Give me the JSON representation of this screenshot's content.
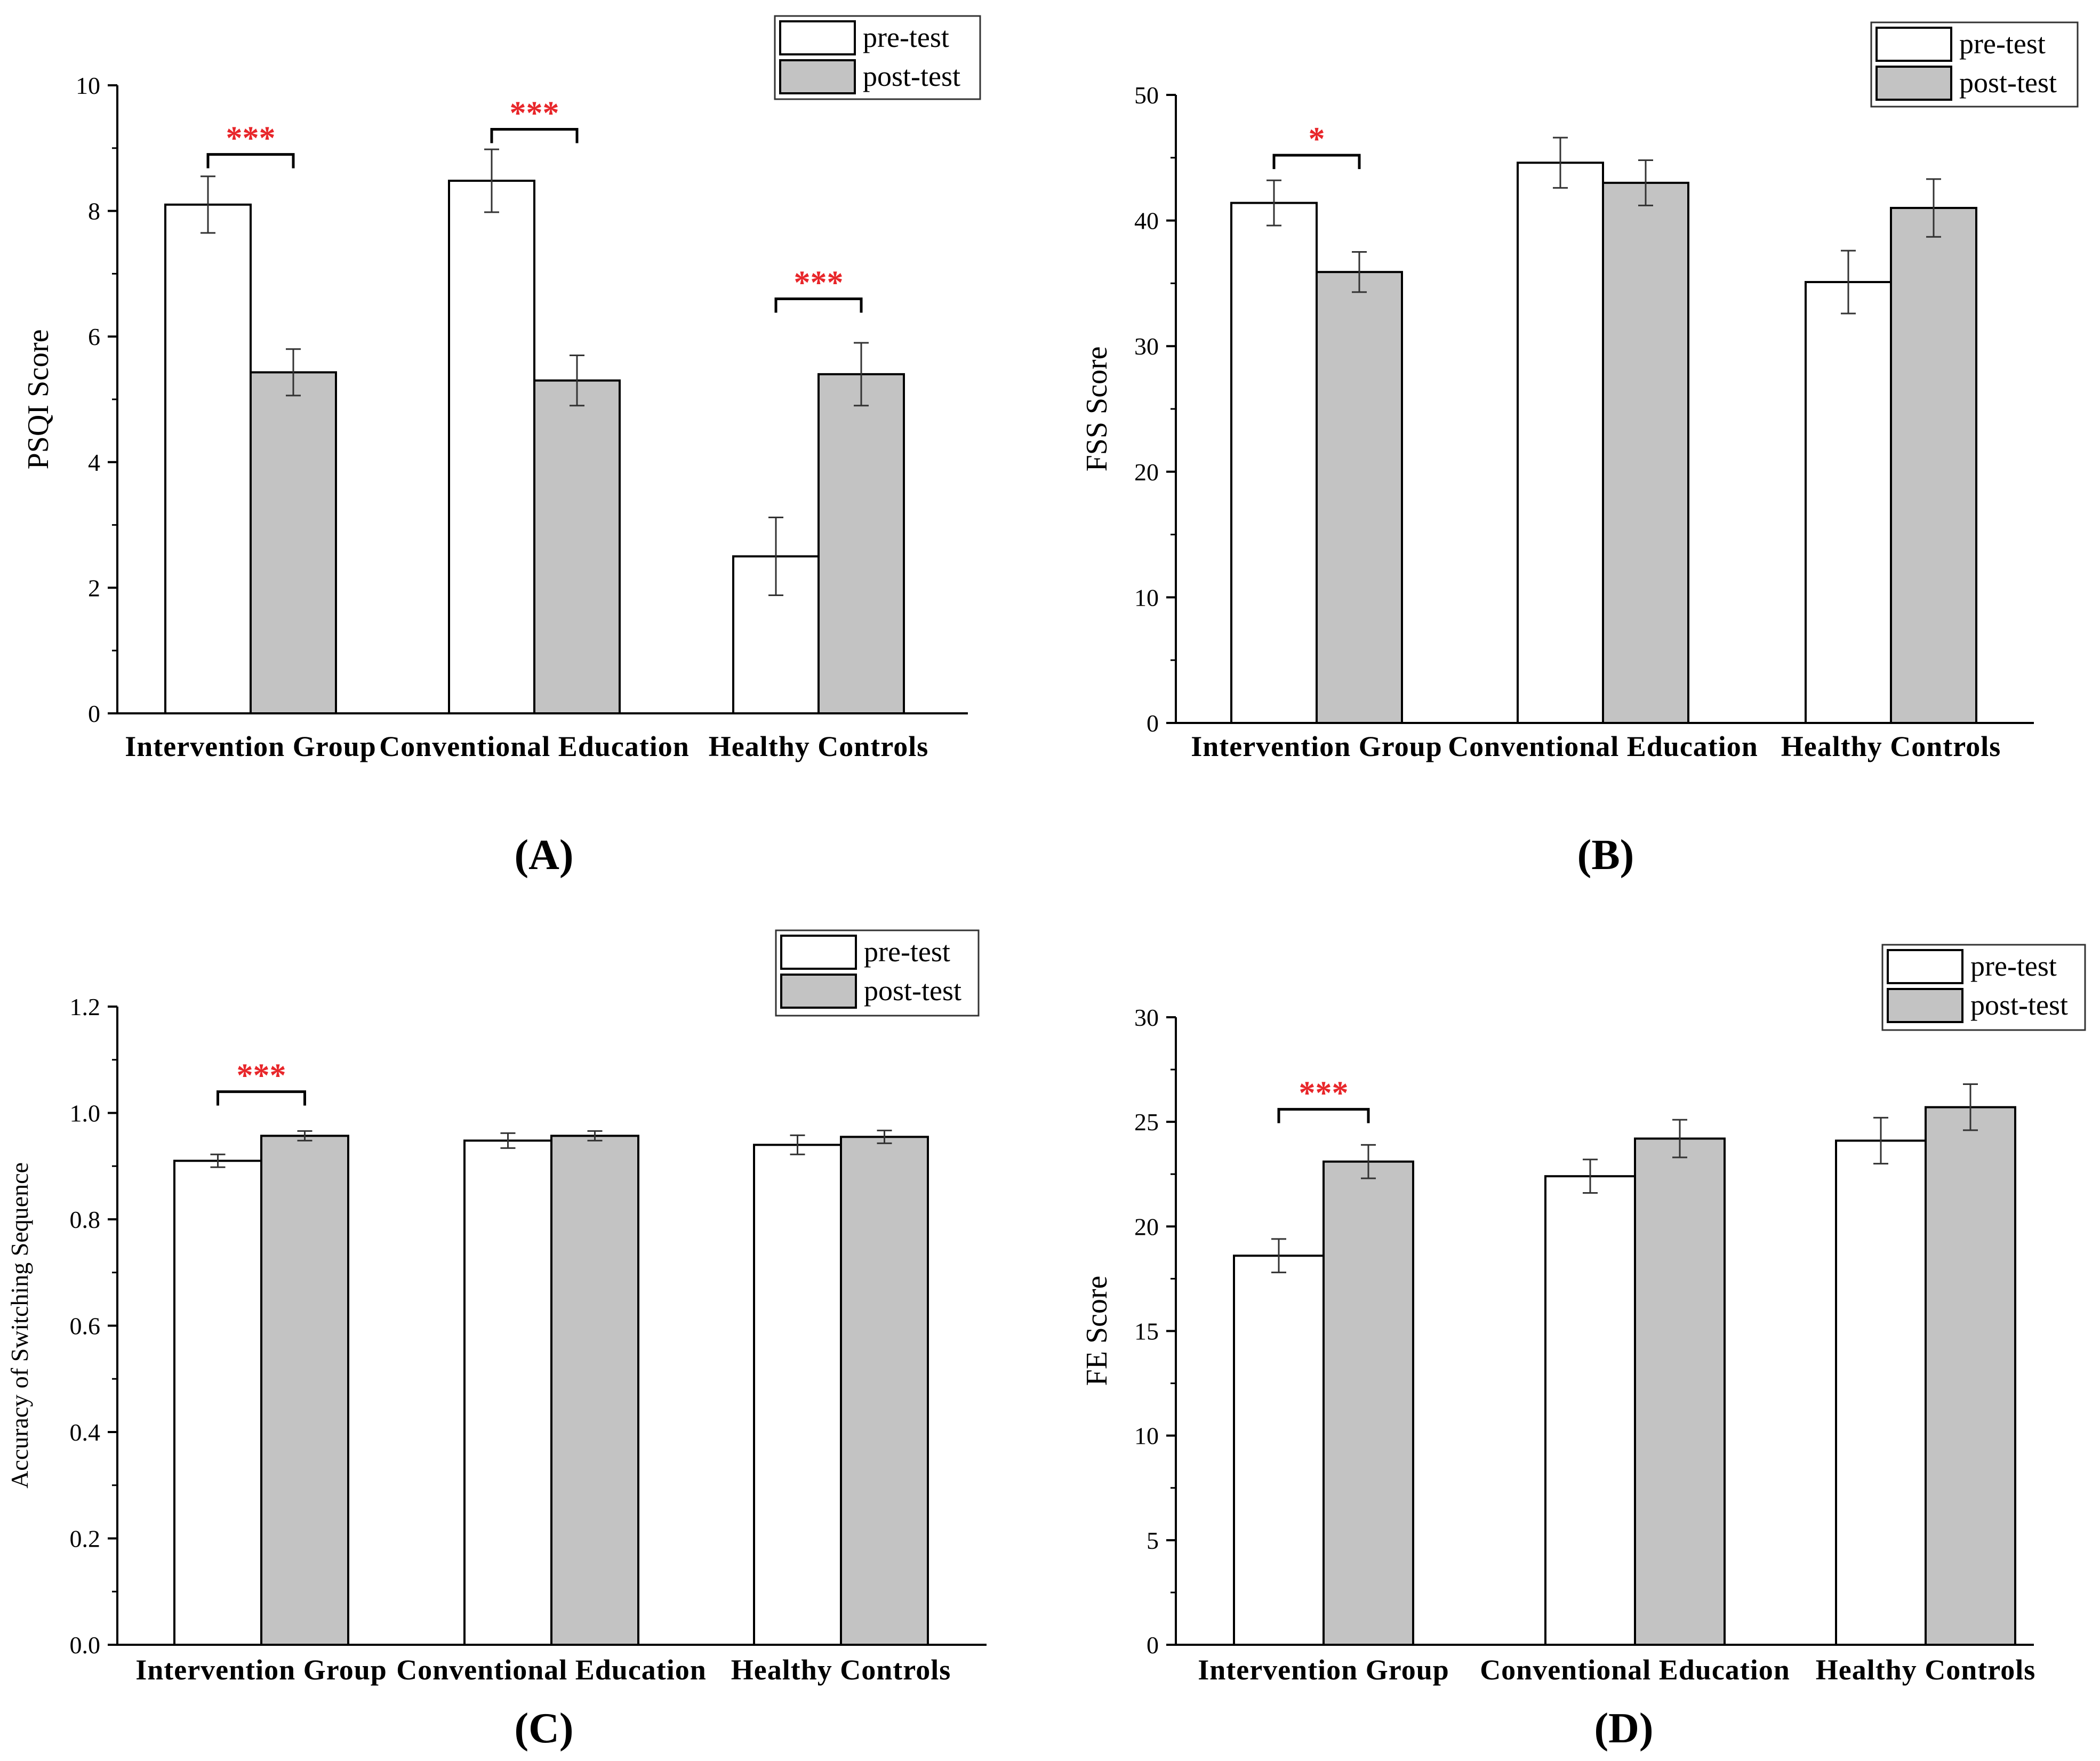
{
  "legend": {
    "pre": "pre-test",
    "post": "post-test"
  },
  "colors": {
    "pre": "#ffffff",
    "post": "#c3c3c3",
    "significance": "#e8262a",
    "axis": "#000000"
  },
  "chart_data": [
    {
      "id": "A",
      "type": "bar",
      "panel_label": "(A)",
      "ylabel": "PSQI Score",
      "xlabel": "",
      "ylim": [
        0,
        10
      ],
      "yticks": [
        0,
        2,
        4,
        6,
        8,
        10
      ],
      "categories": [
        "Intervention Group",
        "Conventional Education",
        "Healthy Controls"
      ],
      "series": [
        {
          "name": "pre-test",
          "values": [
            8.1,
            8.48,
            2.5
          ],
          "errors": [
            0.45,
            0.5,
            0.62
          ]
        },
        {
          "name": "post-test",
          "values": [
            5.43,
            5.3,
            5.4
          ],
          "errors": [
            0.37,
            0.4,
            0.5
          ]
        }
      ],
      "significance": [
        {
          "category": 0,
          "label": "***",
          "y": 8.9
        },
        {
          "category": 1,
          "label": "***",
          "y": 9.3
        },
        {
          "category": 2,
          "label": "***",
          "y": 6.6
        }
      ]
    },
    {
      "id": "B",
      "type": "bar",
      "panel_label": "(B)",
      "ylabel": "FSS  Score",
      "xlabel": "",
      "ylim": [
        0,
        50
      ],
      "yticks": [
        0,
        10,
        20,
        30,
        40,
        50
      ],
      "categories": [
        "Intervention Group",
        "Conventional Education",
        "Healthy Controls"
      ],
      "series": [
        {
          "name": "pre-test",
          "values": [
            41.4,
            44.6,
            35.1
          ],
          "errors": [
            1.8,
            2.0,
            2.5
          ]
        },
        {
          "name": "post-test",
          "values": [
            35.9,
            43.0,
            41.0
          ],
          "errors": [
            1.6,
            1.8,
            2.3
          ]
        }
      ],
      "significance": [
        {
          "category": 0,
          "label": "*",
          "y": 45.2
        }
      ]
    },
    {
      "id": "C",
      "type": "bar",
      "panel_label": "(C)",
      "ylabel": "Accuracy of  Switching Sequence",
      "xlabel": "",
      "ylim": [
        0,
        1.2
      ],
      "yticks": [
        "0.0",
        "0.2",
        "0.4",
        "0.6",
        "0.8",
        "1.0",
        "1.2"
      ],
      "categories": [
        "Intervention Group",
        "Conventional Education",
        "Healthy Controls"
      ],
      "series": [
        {
          "name": "pre-test",
          "values": [
            0.91,
            0.948,
            0.94
          ],
          "errors": [
            0.012,
            0.014,
            0.018
          ]
        },
        {
          "name": "post-test",
          "values": [
            0.957,
            0.957,
            0.955
          ],
          "errors": [
            0.009,
            0.009,
            0.012
          ]
        }
      ],
      "significance": [
        {
          "category": 0,
          "label": "***",
          "y": 1.04
        }
      ]
    },
    {
      "id": "D",
      "type": "bar",
      "panel_label": "(D)",
      "ylabel": "FE Score",
      "xlabel": "",
      "ylim": [
        0,
        30
      ],
      "yticks": [
        0,
        5,
        10,
        15,
        20,
        25,
        30
      ],
      "categories": [
        "Intervention Group",
        "Conventional Education",
        "Healthy Controls"
      ],
      "series": [
        {
          "name": "pre-test",
          "values": [
            18.6,
            22.4,
            24.1
          ],
          "errors": [
            0.8,
            0.8,
            1.1
          ]
        },
        {
          "name": "post-test",
          "values": [
            23.1,
            24.2,
            25.7
          ],
          "errors": [
            0.8,
            0.9,
            1.1
          ]
        }
      ],
      "significance": [
        {
          "category": 0,
          "label": "***",
          "y": 25.6
        }
      ]
    }
  ]
}
